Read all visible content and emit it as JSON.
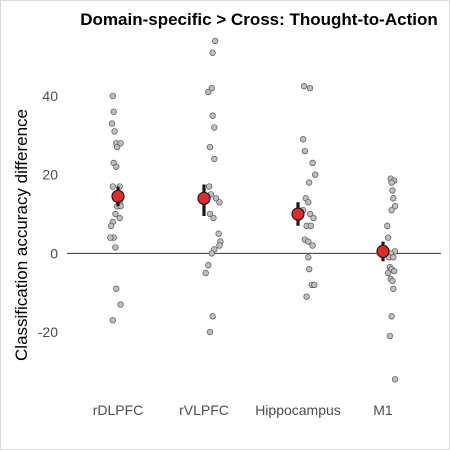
{
  "chart_data": {
    "type": "scatter",
    "title": "Domain-specific > Cross: Thought-to-Action",
    "xlabel": "",
    "ylabel": "Classification accuracy difference",
    "categories": [
      "rDLPFC",
      "rVLPFC",
      "Hippocampus",
      "M1"
    ],
    "ylim": [
      -36,
      55
    ],
    "yticks": [
      -20,
      0,
      20,
      40
    ],
    "grid": false,
    "zero_line": true,
    "point_color": "#bfbfbf",
    "point_edge_color": "#555555",
    "mean_color": "#e32a2a",
    "errorbar_color": "#1a1a1a",
    "zero_line_color": "#333333",
    "axis_text_color": "#4d4d4d",
    "series": [
      {
        "category": "rDLPFC",
        "points": [
          {
            "dx": -0.06,
            "y": 40
          },
          {
            "dx": -0.05,
            "y": 36
          },
          {
            "dx": -0.07,
            "y": 33
          },
          {
            "dx": -0.04,
            "y": 31
          },
          {
            "dx": -0.02,
            "y": 28
          },
          {
            "dx": 0.03,
            "y": 28
          },
          {
            "dx": -0.01,
            "y": 27
          },
          {
            "dx": -0.05,
            "y": 23
          },
          {
            "dx": -0.02,
            "y": 22
          },
          {
            "dx": 0.02,
            "y": 17
          },
          {
            "dx": -0.06,
            "y": 17
          },
          {
            "dx": 0.0,
            "y": 14
          },
          {
            "dx": 0.02,
            "y": 13
          },
          {
            "dx": -0.01,
            "y": 12
          },
          {
            "dx": 0.03,
            "y": 12
          },
          {
            "dx": -0.03,
            "y": 10
          },
          {
            "dx": 0.02,
            "y": 9
          },
          {
            "dx": -0.06,
            "y": 8
          },
          {
            "dx": -0.08,
            "y": 7
          },
          {
            "dx": -0.05,
            "y": 4
          },
          {
            "dx": -0.09,
            "y": 4
          },
          {
            "dx": -0.03,
            "y": 1.5
          },
          {
            "dx": -0.02,
            "y": -9
          },
          {
            "dx": 0.03,
            "y": -13
          },
          {
            "dx": -0.06,
            "y": -17
          }
        ],
        "mean": 14.5,
        "ci": [
          12,
          17
        ]
      },
      {
        "category": "rVLPFC",
        "points": [
          {
            "dx": 0.13,
            "y": 54
          },
          {
            "dx": 0.1,
            "y": 51
          },
          {
            "dx": 0.09,
            "y": 42
          },
          {
            "dx": 0.05,
            "y": 41
          },
          {
            "dx": 0.1,
            "y": 35
          },
          {
            "dx": 0.12,
            "y": 32
          },
          {
            "dx": 0.07,
            "y": 27
          },
          {
            "dx": 0.12,
            "y": 24
          },
          {
            "dx": 0.06,
            "y": 17
          },
          {
            "dx": 0.08,
            "y": 15
          },
          {
            "dx": 0.14,
            "y": 14
          },
          {
            "dx": 0.18,
            "y": 13
          },
          {
            "dx": 0.07,
            "y": 10
          },
          {
            "dx": 0.11,
            "y": 9
          },
          {
            "dx": 0.17,
            "y": 5
          },
          {
            "dx": 0.19,
            "y": 3
          },
          {
            "dx": 0.18,
            "y": 2
          },
          {
            "dx": 0.12,
            "y": 1
          },
          {
            "dx": 0.09,
            "y": 0
          },
          {
            "dx": 0.05,
            "y": -3
          },
          {
            "dx": 0.02,
            "y": -5
          },
          {
            "dx": 0.1,
            "y": -16
          },
          {
            "dx": 0.07,
            "y": -20
          }
        ],
        "mean": 14,
        "ci": [
          9.5,
          17.5
        ]
      },
      {
        "category": "Hippocampus",
        "points": [
          {
            "dx": 0.07,
            "y": 42.5
          },
          {
            "dx": 0.14,
            "y": 42
          },
          {
            "dx": 0.06,
            "y": 29
          },
          {
            "dx": 0.08,
            "y": 26
          },
          {
            "dx": 0.17,
            "y": 23
          },
          {
            "dx": 0.2,
            "y": 20
          },
          {
            "dx": 0.13,
            "y": 18
          },
          {
            "dx": 0.09,
            "y": 14
          },
          {
            "dx": 0.12,
            "y": 13
          },
          {
            "dx": 0.06,
            "y": 11
          },
          {
            "dx": 0.14,
            "y": 10
          },
          {
            "dx": 0.18,
            "y": 9
          },
          {
            "dx": 0.1,
            "y": 7
          },
          {
            "dx": 0.15,
            "y": 7
          },
          {
            "dx": 0.08,
            "y": 3.5
          },
          {
            "dx": 0.12,
            "y": 3
          },
          {
            "dx": 0.17,
            "y": 2
          },
          {
            "dx": 0.12,
            "y": -1
          },
          {
            "dx": 0.13,
            "y": -4
          },
          {
            "dx": 0.16,
            "y": -8
          },
          {
            "dx": 0.19,
            "y": -8
          },
          {
            "dx": 0.1,
            "y": -11
          }
        ],
        "mean": 10,
        "ci": [
          7,
          13
        ]
      },
      {
        "category": "M1",
        "points": [
          {
            "dx": 0.09,
            "y": 19
          },
          {
            "dx": 0.13,
            "y": 18.5
          },
          {
            "dx": 0.1,
            "y": 18
          },
          {
            "dx": 0.11,
            "y": 16
          },
          {
            "dx": 0.12,
            "y": 14
          },
          {
            "dx": 0.14,
            "y": 12
          },
          {
            "dx": 0.1,
            "y": 11
          },
          {
            "dx": 0.05,
            "y": 7
          },
          {
            "dx": 0.06,
            "y": 4
          },
          {
            "dx": 0.14,
            "y": 0.5
          },
          {
            "dx": 0.09,
            "y": 0
          },
          {
            "dx": 0.07,
            "y": -1
          },
          {
            "dx": 0.12,
            "y": -1
          },
          {
            "dx": 0.08,
            "y": -3.5
          },
          {
            "dx": 0.1,
            "y": -4
          },
          {
            "dx": 0.13,
            "y": -4.5
          },
          {
            "dx": 0.06,
            "y": -5
          },
          {
            "dx": 0.09,
            "y": -6.5
          },
          {
            "dx": 0.11,
            "y": -7
          },
          {
            "dx": 0.12,
            "y": -9
          },
          {
            "dx": 0.1,
            "y": -16
          },
          {
            "dx": 0.08,
            "y": -21
          },
          {
            "dx": 0.14,
            "y": -32
          }
        ],
        "mean": 0.5,
        "ci": [
          -2,
          3
        ]
      }
    ]
  }
}
